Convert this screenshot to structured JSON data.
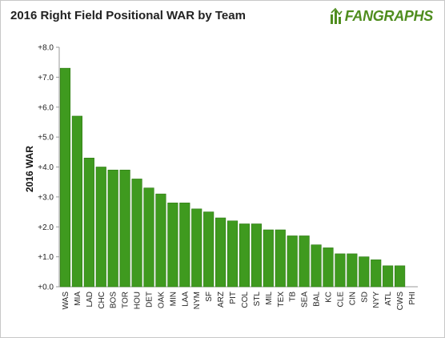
{
  "header": {
    "title": "2016 Right Field Positional WAR by Team",
    "logo_text": "FANGRAPHS"
  },
  "colors": {
    "bar": "#3f9a1f",
    "bar_stroke": "#2c7812",
    "logo": "#4f8d1e"
  },
  "icons": {
    "logo_mark": "fangraphs-logo-icon"
  },
  "chart_data": {
    "type": "bar",
    "title": "2016 Right Field Positional WAR by Team",
    "xlabel": "",
    "ylabel": "2016 WAR",
    "ylim": [
      0,
      8
    ],
    "yticks": [
      "+0.0",
      "+1.0",
      "+2.0",
      "+3.0",
      "+4.0",
      "+5.0",
      "+6.0",
      "+7.0",
      "+8.0"
    ],
    "grid": false,
    "categories": [
      "WAS",
      "MIA",
      "LAD",
      "CHC",
      "BOS",
      "TOR",
      "HOU",
      "DET",
      "OAK",
      "MIN",
      "LAA",
      "NYM",
      "SF",
      "ARZ",
      "PIT",
      "COL",
      "STL",
      "MIL",
      "TEX",
      "TB",
      "SEA",
      "BAL",
      "KC",
      "CLE",
      "CIN",
      "SD",
      "NYY",
      "ATL",
      "CWS",
      "PHI"
    ],
    "values": [
      7.3,
      5.7,
      4.3,
      4.0,
      3.9,
      3.9,
      3.6,
      3.3,
      3.1,
      2.8,
      2.8,
      2.6,
      2.5,
      2.3,
      2.2,
      2.1,
      2.1,
      1.9,
      1.9,
      1.7,
      1.7,
      1.4,
      1.3,
      1.1,
      1.1,
      1.0,
      0.9,
      0.7,
      0.7,
      0.0
    ]
  }
}
